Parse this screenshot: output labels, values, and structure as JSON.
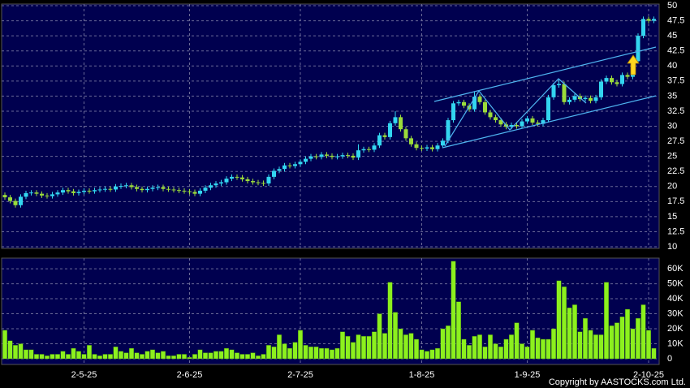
{
  "chart_data": [
    {
      "type": "candlestick",
      "open": [
        18.6,
        18.2,
        17.6,
        16.9,
        18.3,
        18.9,
        19.0,
        18.8,
        18.5,
        18.4,
        18.7,
        19.0,
        19.4,
        19.2,
        18.9,
        19.1,
        19.3,
        19.2,
        19.4,
        19.5,
        19.6,
        19.5,
        20.0,
        20.1,
        20.2,
        19.9,
        19.6,
        19.4,
        19.6,
        19.8,
        19.9,
        19.6,
        19.5,
        19.4,
        19.3,
        19.2,
        19.1,
        18.8,
        19.3,
        19.8,
        20.2,
        20.5,
        20.7,
        21.3,
        21.6,
        21.5,
        21.2,
        20.9,
        20.7,
        20.6,
        20.5,
        21.6,
        22.6,
        22.9,
        23.5,
        23.4,
        23.7,
        24.1,
        24.6,
        25.0,
        24.9,
        25.3,
        25.1,
        24.9,
        25.0,
        25.2,
        25.1,
        24.8,
        26.0,
        26.2,
        26.1,
        26.8,
        28.5,
        28.2,
        30.5,
        31.5,
        29.5,
        28.0,
        27.0,
        26.4,
        26.3,
        26.5,
        26.2,
        26.8,
        27.6,
        31.0,
        33.8,
        34.0,
        33.4,
        32.8,
        34.9,
        34.0,
        32.3,
        31.5,
        31.0,
        30.3,
        29.9,
        30.2,
        30.0,
        30.8,
        31.3,
        30.6,
        30.4,
        31.0,
        34.8,
        36.8,
        37.0,
        34.0,
        34.4,
        35.0,
        34.5,
        34.7,
        34.2,
        34.8,
        37.4,
        38.0,
        37.3,
        37.0,
        38.5,
        38.2,
        40.8,
        45.0,
        47.8,
        47.5
      ],
      "high": [
        19.0,
        18.6,
        18.0,
        18.7,
        19.3,
        19.4,
        19.4,
        19.2,
        18.9,
        19.1,
        19.4,
        19.8,
        19.8,
        19.6,
        19.5,
        19.7,
        19.7,
        19.8,
        19.9,
        20.0,
        20.0,
        20.4,
        20.5,
        20.6,
        20.6,
        20.3,
        20.0,
        20.0,
        20.2,
        20.3,
        20.3,
        20.0,
        19.9,
        19.8,
        19.7,
        19.6,
        19.5,
        19.7,
        20.2,
        20.6,
        20.9,
        21.1,
        21.7,
        22.0,
        22.0,
        21.9,
        21.6,
        21.3,
        21.1,
        21.0,
        22.0,
        23.0,
        23.3,
        23.9,
        23.9,
        24.1,
        24.5,
        25.0,
        25.4,
        25.4,
        25.7,
        25.7,
        25.5,
        25.4,
        25.6,
        25.6,
        25.5,
        27.0,
        26.6,
        26.6,
        27.2,
        28.9,
        28.9,
        30.9,
        32.5,
        31.9,
        29.9,
        28.4,
        27.4,
        26.8,
        26.9,
        26.9,
        27.2,
        28.0,
        31.4,
        34.2,
        34.4,
        34.4,
        33.8,
        35.8,
        35.3,
        34.4,
        32.7,
        31.9,
        31.4,
        30.7,
        30.6,
        30.6,
        31.2,
        31.7,
        31.7,
        31.0,
        31.4,
        35.2,
        37.2,
        37.8,
        37.4,
        34.8,
        35.4,
        35.4,
        35.1,
        35.1,
        35.2,
        37.8,
        38.4,
        38.4,
        37.7,
        38.9,
        38.9,
        41.2,
        45.4,
        48.2,
        48.2,
        48.2
      ],
      "low": [
        17.8,
        17.2,
        16.5,
        16.5,
        17.9,
        18.5,
        18.4,
        18.1,
        18.0,
        18.0,
        18.3,
        18.6,
        18.8,
        18.5,
        18.5,
        18.7,
        18.8,
        18.8,
        19.0,
        19.1,
        19.1,
        19.1,
        19.6,
        19.7,
        19.5,
        19.2,
        19.0,
        19.0,
        19.2,
        19.4,
        19.2,
        19.1,
        19.0,
        18.9,
        18.8,
        18.7,
        18.4,
        18.4,
        18.9,
        19.4,
        19.8,
        20.1,
        20.3,
        20.9,
        21.1,
        20.8,
        20.5,
        20.3,
        20.2,
        20.1,
        20.1,
        21.2,
        22.2,
        22.5,
        23.0,
        23.0,
        23.3,
        23.7,
        24.2,
        24.5,
        24.5,
        24.7,
        24.5,
        24.5,
        24.6,
        24.7,
        24.4,
        24.4,
        25.6,
        25.7,
        25.7,
        26.4,
        27.8,
        27.8,
        30.1,
        29.1,
        27.6,
        26.6,
        26.0,
        25.9,
        25.9,
        25.8,
        25.8,
        26.4,
        27.2,
        30.6,
        33.4,
        33.0,
        32.4,
        32.4,
        33.6,
        31.9,
        31.1,
        30.6,
        29.9,
        29.5,
        29.5,
        29.6,
        29.6,
        30.4,
        30.2,
        30.0,
        30.0,
        30.6,
        34.4,
        36.4,
        33.6,
        33.6,
        34.0,
        34.1,
        34.1,
        33.8,
        33.8,
        34.4,
        37.0,
        36.9,
        36.6,
        36.6,
        37.8,
        37.8,
        40.4,
        44.6,
        47.1,
        47.1
      ],
      "close": [
        18.2,
        17.6,
        16.9,
        18.3,
        18.9,
        19.0,
        18.8,
        18.5,
        18.4,
        18.7,
        19.0,
        19.4,
        19.2,
        18.9,
        19.1,
        19.3,
        19.2,
        19.4,
        19.5,
        19.6,
        19.5,
        20.0,
        20.1,
        20.2,
        19.9,
        19.6,
        19.4,
        19.6,
        19.8,
        19.9,
        19.6,
        19.5,
        19.4,
        19.3,
        19.2,
        19.1,
        18.8,
        19.3,
        19.8,
        20.2,
        20.5,
        20.7,
        21.3,
        21.6,
        21.5,
        21.2,
        20.9,
        20.7,
        20.6,
        20.5,
        21.6,
        22.6,
        22.9,
        23.5,
        23.4,
        23.7,
        24.1,
        24.6,
        25.0,
        24.9,
        25.3,
        25.1,
        24.9,
        25.0,
        25.2,
        25.1,
        24.8,
        26.0,
        26.2,
        26.1,
        26.8,
        28.5,
        28.2,
        30.5,
        31.5,
        29.5,
        28.0,
        27.0,
        26.4,
        26.3,
        26.5,
        26.2,
        26.8,
        27.6,
        31.0,
        33.8,
        34.0,
        33.4,
        32.8,
        34.9,
        34.0,
        32.3,
        31.5,
        31.0,
        30.3,
        29.9,
        30.2,
        30.0,
        30.8,
        31.3,
        30.6,
        30.4,
        31.0,
        34.8,
        36.8,
        37.0,
        34.0,
        34.4,
        35.0,
        34.5,
        34.7,
        34.2,
        34.8,
        37.4,
        38.0,
        37.3,
        37.0,
        38.5,
        38.2,
        40.8,
        45.0,
        47.8,
        47.5,
        47.8
      ],
      "up_color": "#33d6f0",
      "down_color": "#9bdc3a",
      "ylim": [
        10,
        50
      ],
      "yticks": [
        10,
        12.5,
        15,
        17.5,
        20,
        22.5,
        25,
        27.5,
        30,
        32.5,
        35,
        37.5,
        40,
        42.5,
        45,
        47.5,
        50
      ],
      "grid": true
    },
    {
      "type": "bar",
      "categories": [
        null,
        null,
        null,
        null,
        null,
        null,
        null,
        null,
        null,
        null,
        null,
        null,
        null,
        null,
        null,
        "2-5-25",
        null,
        null,
        null,
        null,
        null,
        null,
        null,
        null,
        null,
        null,
        null,
        null,
        null,
        null,
        null,
        null,
        null,
        null,
        null,
        "2-6-25",
        null,
        null,
        null,
        null,
        null,
        null,
        null,
        null,
        null,
        null,
        null,
        null,
        null,
        null,
        null,
        null,
        null,
        null,
        null,
        null,
        "2-7-25",
        null,
        null,
        null,
        null,
        null,
        null,
        null,
        null,
        null,
        null,
        null,
        null,
        null,
        null,
        null,
        null,
        null,
        null,
        null,
        null,
        null,
        null,
        "1-8-25",
        null,
        null,
        null,
        null,
        null,
        null,
        null,
        null,
        null,
        null,
        null,
        null,
        null,
        null,
        null,
        null,
        null,
        null,
        null,
        "1-9-25",
        null,
        null,
        null,
        null,
        null,
        null,
        null,
        null,
        null,
        null,
        null,
        null,
        null,
        null,
        null,
        null,
        null,
        null,
        null,
        null,
        null,
        null,
        "2-10-25",
        null
      ],
      "values": [
        19000,
        12000,
        9000,
        10000,
        6000,
        6000,
        3000,
        3000,
        2000,
        3000,
        3000,
        5000,
        3000,
        7000,
        5000,
        3000,
        9000,
        3000,
        2000,
        3000,
        3000,
        8000,
        5000,
        4000,
        7000,
        4000,
        3000,
        5000,
        6000,
        4000,
        5000,
        2000,
        2000,
        3000,
        3000,
        1000,
        3000,
        6000,
        4000,
        4000,
        5000,
        5000,
        7000,
        6000,
        4000,
        3000,
        3000,
        4000,
        2000,
        3000,
        9000,
        8000,
        16000,
        10000,
        7000,
        11000,
        19000,
        9000,
        8000,
        8000,
        7000,
        7000,
        6000,
        7000,
        18000,
        15000,
        11000,
        16000,
        15000,
        15000,
        18000,
        30000,
        17000,
        51000,
        31000,
        20000,
        16000,
        17000,
        13000,
        6000,
        5000,
        6000,
        7000,
        20000,
        22000,
        65000,
        38000,
        13000,
        9000,
        15000,
        16000,
        8000,
        16000,
        10000,
        8000,
        13000,
        16000,
        24000,
        10000,
        8000,
        19000,
        14000,
        13000,
        13000,
        20000,
        52000,
        48000,
        34000,
        36000,
        18000,
        27000,
        19000,
        16000,
        16000,
        51000,
        22000,
        24000,
        28000,
        33000,
        20000,
        27000,
        36000,
        19000,
        7000
      ],
      "color": "#8cf01e",
      "ylim": [
        0,
        66000
      ],
      "yticks": [
        0,
        {
          "value": 10000,
          "label": "10K"
        },
        {
          "value": 20000,
          "label": "20K"
        },
        {
          "value": 30000,
          "label": "30K"
        },
        {
          "value": 40000,
          "label": "40K"
        },
        {
          "value": 50000,
          "label": "50K"
        },
        {
          "value": 60000,
          "label": "60K"
        }
      ],
      "grid": true
    }
  ],
  "footer": "Copyright by AASTOCKS.com Ltd."
}
